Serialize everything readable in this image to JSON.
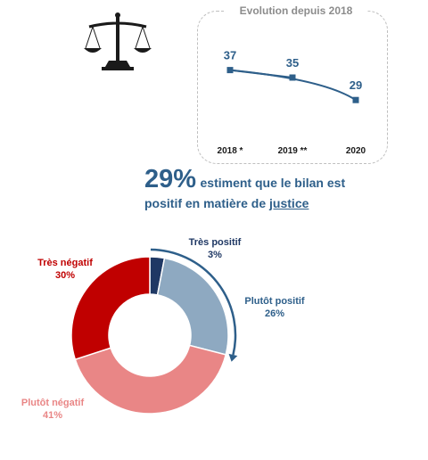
{
  "evolution": {
    "title": "Evolution depuis 2018",
    "chart_data": {
      "type": "line",
      "categories": [
        "2018 *",
        "2019 **",
        "2020"
      ],
      "values": [
        37,
        35,
        29
      ],
      "ylim": [
        20,
        45
      ]
    },
    "color": "#2e5f8a"
  },
  "headline": {
    "percent": "29%",
    "text_part1": "estiment que le bilan est",
    "text_part2": "positif en matière de",
    "keyword": "justice"
  },
  "donut": {
    "chart_data": {
      "type": "pie",
      "labels": [
        "Très positif",
        "Plutôt positif",
        "Plutôt négatif",
        "Très négatif"
      ],
      "values": [
        3,
        26,
        41,
        30
      ],
      "value_labels": [
        "3%",
        "26%",
        "41%",
        "30%"
      ],
      "colors": [
        "#1f3864",
        "#8ea9c1",
        "#e98686",
        "#c00000"
      ],
      "label_colors": [
        "#1f3864",
        "#2e5f8a",
        "#e98686",
        "#c00000"
      ]
    },
    "arrow_color": "#2e5f8a"
  },
  "icon": "scales-of-justice-icon"
}
